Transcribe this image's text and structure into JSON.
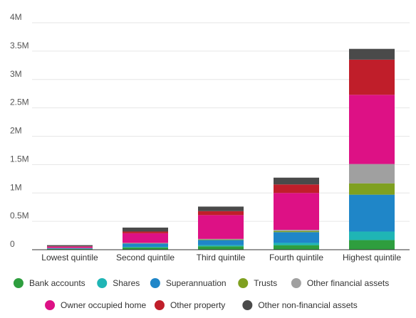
{
  "chart_data": {
    "type": "bar",
    "stacked": true,
    "title": "",
    "xlabel": "",
    "ylabel": "",
    "ylim": [
      0,
      4000000
    ],
    "yticks": [
      {
        "value": 0,
        "label": "0"
      },
      {
        "value": 500000,
        "label": "0.5M"
      },
      {
        "value": 1000000,
        "label": "1M"
      },
      {
        "value": 1500000,
        "label": "1.5M"
      },
      {
        "value": 2000000,
        "label": "2M"
      },
      {
        "value": 2500000,
        "label": "2.5M"
      },
      {
        "value": 3000000,
        "label": "3M"
      },
      {
        "value": 3500000,
        "label": "3.5M"
      },
      {
        "value": 4000000,
        "label": "4M"
      }
    ],
    "grid": true,
    "legend_position": "bottom",
    "categories": [
      "Lowest quintile",
      "Second quintile",
      "Third quintile",
      "Fourth quintile",
      "Highest quintile"
    ],
    "series": [
      {
        "name": "Bank accounts",
        "color": "#2e9e3e",
        "values": [
          15000,
          40000,
          60000,
          80000,
          170000
        ]
      },
      {
        "name": "Shares",
        "color": "#1fb5b5",
        "values": [
          2000,
          10000,
          20000,
          40000,
          150000
        ]
      },
      {
        "name": "Superannuation",
        "color": "#1f86c8",
        "values": [
          10000,
          60000,
          90000,
          190000,
          650000
        ]
      },
      {
        "name": "Trusts",
        "color": "#7fa020",
        "values": [
          1000,
          5000,
          10000,
          20000,
          200000
        ]
      },
      {
        "name": "Other financial assets",
        "color": "#a0a0a0",
        "values": [
          2000,
          5000,
          10000,
          20000,
          340000
        ]
      },
      {
        "name": "Owner occupied home",
        "color": "#dd1185",
        "values": [
          25000,
          170000,
          420000,
          650000,
          1220000
        ]
      },
      {
        "name": "Other property",
        "color": "#c01e2a",
        "values": [
          5000,
          30000,
          70000,
          150000,
          620000
        ]
      },
      {
        "name": "Other non-financial assets",
        "color": "#4a4a4a",
        "values": [
          20000,
          70000,
          80000,
          120000,
          190000
        ]
      }
    ]
  }
}
